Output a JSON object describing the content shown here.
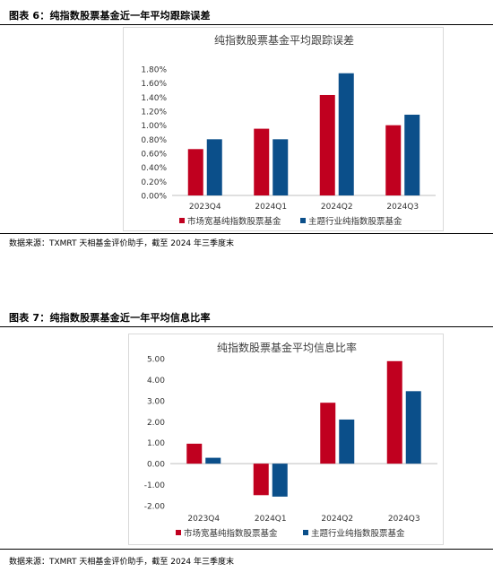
{
  "figure6": {
    "label": "图表 6：纯指数股票基金近一年平均跟踪误差",
    "source": "数据来源：TXMRT 天相基金评价助手，截至 2024 年三季度末"
  },
  "figure7": {
    "label": "图表 7：纯指数股票基金近一年平均信息比率",
    "source": "数据来源：TXMRT 天相基金评价助手，截至 2024 年三季度末"
  },
  "chart_data": [
    {
      "type": "bar",
      "title": "纯指数股票基金平均跟踪误差",
      "categories": [
        "2023Q4",
        "2024Q1",
        "2024Q2",
        "2024Q3"
      ],
      "series": [
        {
          "name": "市场宽基纯指数股票基金",
          "values": [
            0.0066,
            0.0095,
            0.0143,
            0.01
          ],
          "color": "#c0001f"
        },
        {
          "name": "主题行业纯指数股票基金",
          "values": [
            0.008,
            0.008,
            0.0174,
            0.0115
          ],
          "color": "#0b4f8a"
        }
      ],
      "ylim": [
        0,
        0.018
      ],
      "yticks": [
        "0.00%",
        "0.20%",
        "0.40%",
        "0.60%",
        "0.80%",
        "1.00%",
        "1.20%",
        "1.40%",
        "1.60%",
        "1.80%"
      ],
      "ytick_values": [
        0,
        0.002,
        0.004,
        0.006,
        0.008,
        0.01,
        0.012,
        0.014,
        0.016,
        0.018
      ],
      "grid": false,
      "legend": "bottom"
    },
    {
      "type": "bar",
      "title": "纯指数股票基金平均信息比率",
      "categories": [
        "2023Q4",
        "2024Q1",
        "2024Q2",
        "2024Q3"
      ],
      "series": [
        {
          "name": "市场宽基纯指数股票基金",
          "values": [
            0.95,
            -1.5,
            2.9,
            4.88
          ],
          "color": "#c0001f"
        },
        {
          "name": "主题行业纯指数股票基金",
          "values": [
            0.28,
            -1.57,
            2.1,
            3.45
          ],
          "color": "#0b4f8a"
        }
      ],
      "ylim": [
        -2,
        5
      ],
      "yticks": [
        "-2.00",
        "-1.00",
        "0.00",
        "1.00",
        "2.00",
        "3.00",
        "4.00",
        "5.00"
      ],
      "ytick_values": [
        -2,
        -1,
        0,
        1,
        2,
        3,
        4,
        5
      ],
      "grid": false,
      "legend": "bottom"
    }
  ]
}
